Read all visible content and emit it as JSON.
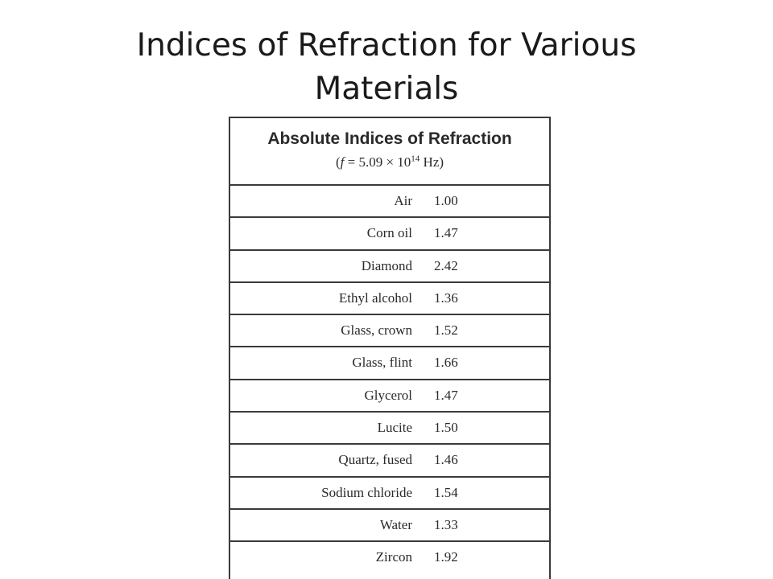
{
  "slide": {
    "title_line1": "Indices of Refraction for Various",
    "title_line2": "Materials"
  },
  "table": {
    "heading": "Absolute Indices of Refraction",
    "frequency": {
      "open": "(",
      "variable": "f",
      "equals": " = 5.09 × 10",
      "exponent": "14",
      "unit": " Hz)"
    },
    "rows": [
      {
        "material": "Air",
        "index": "1.00"
      },
      {
        "material": "Corn oil",
        "index": "1.47"
      },
      {
        "material": "Diamond",
        "index": "2.42"
      },
      {
        "material": "Ethyl alcohol",
        "index": "1.36"
      },
      {
        "material": "Glass, crown",
        "index": "1.52"
      },
      {
        "material": "Glass, flint",
        "index": "1.66"
      },
      {
        "material": "Glycerol",
        "index": "1.47"
      },
      {
        "material": "Lucite",
        "index": "1.50"
      },
      {
        "material": "Quartz, fused",
        "index": "1.46"
      },
      {
        "material": "Sodium chloride",
        "index": "1.54"
      },
      {
        "material": "Water",
        "index": "1.33"
      },
      {
        "material": "Zircon",
        "index": "1.92"
      }
    ]
  }
}
